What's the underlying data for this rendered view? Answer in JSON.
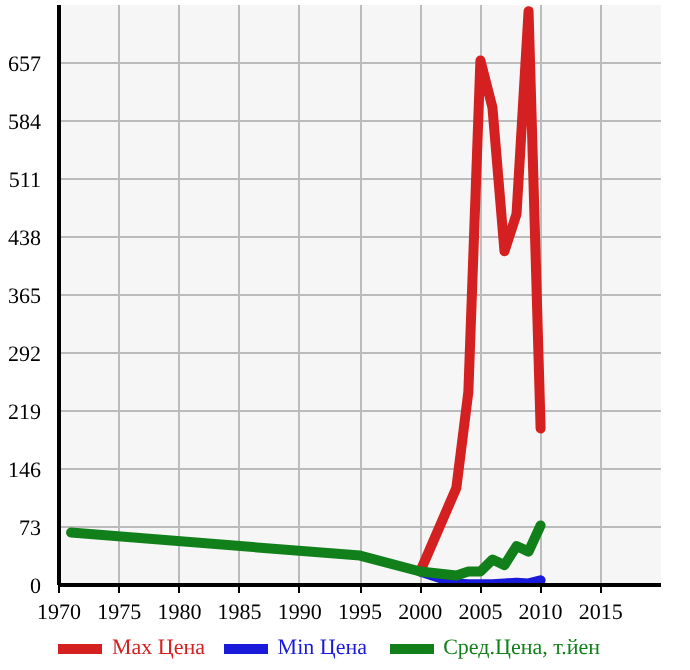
{
  "chart_data": {
    "type": "line",
    "xlim": [
      1970,
      2020
    ],
    "xticks": [
      1970,
      1975,
      1980,
      1985,
      1990,
      1995,
      2000,
      2005,
      2010,
      2015
    ],
    "ylim": [
      0,
      730
    ],
    "yticks": [
      0,
      73,
      146,
      219,
      292,
      365,
      438,
      511,
      584,
      657
    ],
    "grid": true,
    "legend": "bottom",
    "marker": "none",
    "line_style": "solid",
    "series": [
      {
        "name": "Max Цена",
        "color": "#d42020",
        "x": [
          2000,
          2003,
          2004,
          2005,
          2006,
          2007,
          2008,
          2009,
          2010
        ],
        "values": [
          17,
          122,
          243,
          660,
          601,
          420,
          467,
          722,
          197
        ]
      },
      {
        "name": "Min Цена",
        "color": "#1a1adb",
        "x": [
          2000,
          2002,
          2003,
          2004,
          2005,
          2006,
          2007,
          2008,
          2009,
          2010
        ],
        "values": [
          17,
          7,
          2,
          1,
          1,
          1,
          2,
          3,
          2,
          6
        ]
      },
      {
        "name": "Сред.Цена, т.йен",
        "color": "#11801a",
        "x": [
          1971,
          1995,
          2000,
          2003,
          2004,
          2005,
          2006,
          2007,
          2008,
          2009,
          2010
        ],
        "values": [
          66,
          37,
          17,
          12,
          17,
          17,
          32,
          25,
          49,
          42,
          75
        ]
      }
    ]
  }
}
